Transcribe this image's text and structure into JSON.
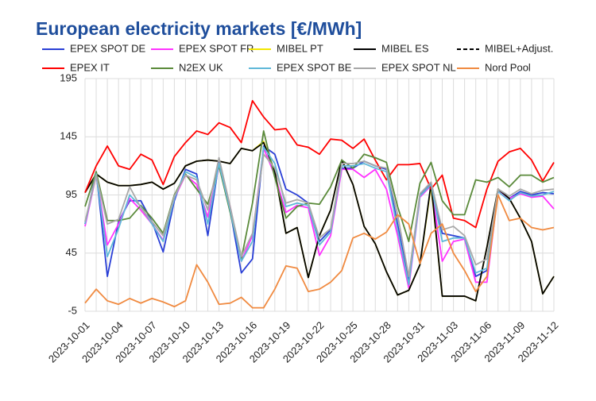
{
  "chart_data": {
    "type": "line",
    "title": "European electricity markets [€/MWh]",
    "categories": [
      "2023-10-01",
      null,
      null,
      "2023-10-04",
      null,
      null,
      "2023-10-07",
      null,
      null,
      "2023-10-10",
      null,
      null,
      "2023-10-13",
      null,
      null,
      "2023-10-16",
      null,
      null,
      "2023-10-19",
      null,
      null,
      "2023-10-22",
      null,
      null,
      "2023-10-25",
      null,
      null,
      "2023-10-28",
      null,
      null,
      "2023-10-31",
      null,
      null,
      "2023-11-03",
      null,
      null,
      "2023-11-06",
      null,
      null,
      "2023-11-09",
      null,
      null,
      "2023-11-12"
    ],
    "ylim": [
      -5,
      195
    ],
    "yticks": [
      -5,
      45,
      95,
      145,
      195
    ],
    "grid": true,
    "series": [
      {
        "name": "EPEX SPOT DE",
        "color": "#2a3fd6",
        "values": [
          70,
          115,
          25,
          72,
          90,
          90,
          72,
          46,
          90,
          117,
          113,
          60,
          123,
          82,
          28,
          40,
          137,
          130,
          100,
          95,
          88,
          55,
          65,
          118,
          118,
          124,
          120,
          117,
          70,
          20,
          95,
          105,
          62,
          60,
          58,
          25,
          30,
          98,
          92,
          98,
          95,
          97,
          96
        ]
      },
      {
        "name": "EPEX SPOT FR",
        "color": "#ff33ff",
        "values": [
          68,
          112,
          52,
          70,
          92,
          82,
          70,
          56,
          92,
          112,
          104,
          76,
          120,
          85,
          38,
          60,
          135,
          112,
          80,
          86,
          84,
          43,
          60,
          117,
          117,
          110,
          117,
          100,
          60,
          15,
          93,
          103,
          38,
          55,
          57,
          20,
          20,
          98,
          92,
          96,
          93,
          94,
          83
        ]
      },
      {
        "name": "MIBEL PT",
        "color": "#f2e600",
        "values": [
          97,
          113,
          106,
          103,
          103,
          104,
          106,
          100,
          105,
          120,
          124,
          125,
          124,
          122,
          135,
          133,
          141,
          115,
          62,
          67,
          24,
          60,
          82,
          125,
          104,
          68,
          53,
          29,
          9,
          13,
          35,
          103,
          8,
          8,
          8,
          4,
          50,
          100,
          92,
          75,
          55,
          10,
          25
        ]
      },
      {
        "name": "MIBEL ES",
        "color": "#000000",
        "values": [
          97,
          113,
          106,
          103,
          103,
          104,
          106,
          100,
          105,
          120,
          124,
          125,
          124,
          122,
          135,
          133,
          140,
          115,
          62,
          67,
          24,
          60,
          82,
          125,
          104,
          68,
          53,
          29,
          9,
          13,
          35,
          105,
          8,
          8,
          8,
          4,
          50,
          100,
          92,
          75,
          55,
          10,
          25
        ]
      },
      {
        "name": "MIBEL+Adjust.",
        "color": "#000000",
        "dash": true,
        "values": [
          null,
          null,
          null,
          null,
          null,
          null,
          null,
          null,
          null,
          null,
          null,
          null,
          null,
          null,
          null,
          null,
          null,
          null,
          null,
          null,
          null,
          null,
          null,
          null,
          null,
          null,
          null,
          null,
          null,
          null,
          null,
          null,
          null,
          null,
          null,
          null,
          null,
          null,
          null,
          null,
          null,
          null,
          null
        ]
      },
      {
        "name": "EPEX IT",
        "color": "#ff0000",
        "values": [
          97,
          120,
          137,
          120,
          117,
          130,
          125,
          104,
          128,
          140,
          150,
          147,
          157,
          153,
          140,
          176,
          162,
          151,
          152,
          138,
          136,
          130,
          143,
          142,
          135,
          143,
          125,
          108,
          121,
          121,
          122,
          100,
          112,
          75,
          73,
          67,
          100,
          124,
          132,
          135,
          125,
          107,
          123
        ]
      },
      {
        "name": "N2EX UK",
        "color": "#5a8a3a",
        "values": [
          85,
          115,
          73,
          73,
          75,
          86,
          75,
          62,
          95,
          113,
          100,
          87,
          120,
          80,
          40,
          88,
          150,
          110,
          75,
          85,
          88,
          87,
          102,
          125,
          118,
          130,
          127,
          123,
          85,
          55,
          105,
          123,
          90,
          78,
          78,
          108,
          106,
          110,
          102,
          112,
          112,
          106,
          110
        ]
      },
      {
        "name": "EPEX SPOT BE",
        "color": "#5fb8d8",
        "values": [
          70,
          113,
          42,
          66,
          95,
          85,
          70,
          55,
          92,
          115,
          110,
          70,
          122,
          82,
          38,
          55,
          136,
          122,
          85,
          88,
          86,
          52,
          63,
          120,
          120,
          122,
          118,
          115,
          65,
          18,
          94,
          104,
          55,
          58,
          58,
          28,
          32,
          98,
          90,
          97,
          94,
          95,
          98
        ]
      },
      {
        "name": "EPEX SPOT NL",
        "color": "#a8a8a8",
        "values": [
          72,
          112,
          70,
          74,
          102,
          84,
          72,
          60,
          94,
          112,
          108,
          82,
          127,
          85,
          42,
          62,
          130,
          118,
          88,
          91,
          88,
          58,
          66,
          122,
          122,
          124,
          120,
          118,
          78,
          25,
          96,
          106,
          65,
          68,
          60,
          35,
          40,
          100,
          94,
          100,
          96,
          99,
          100
        ]
      },
      {
        "name": "Nord Pool",
        "color": "#f08a40",
        "values": [
          2,
          14,
          4,
          1,
          6,
          2,
          6,
          3,
          -1,
          4,
          35,
          20,
          1,
          2,
          7,
          -2,
          -2,
          14,
          34,
          32,
          12,
          14,
          20,
          30,
          58,
          62,
          57,
          63,
          78,
          70,
          36,
          62,
          70,
          45,
          30,
          12,
          25,
          95,
          73,
          75,
          67,
          65,
          67
        ]
      }
    ]
  }
}
